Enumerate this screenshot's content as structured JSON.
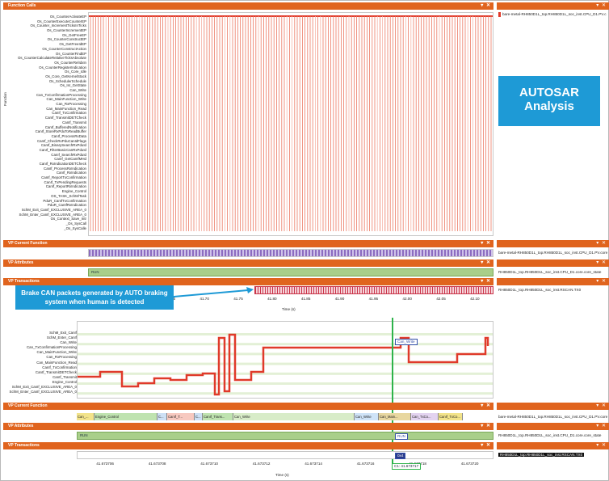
{
  "upper": {
    "function_calls_title": "Function Calls",
    "y_axis_label": "Function",
    "functions": [
      "Os_CounterActivateEP",
      "Os_CounterExecuteCounterEP",
      "Os_Counter_IncrementTicksInTicks",
      "Os_CounterIncrementEP",
      "Os_GetFreeEP",
      "Os_CounterConstructEP",
      "Os_GetFreeIdEP",
      "Os_CounterConstructAction",
      "Os_CounterFindEP",
      "Os_CounterCalculateRelativeTicksAbsolute",
      "Os_CounterRelIdxIn",
      "Os_CounterRegisterIndication",
      "Os_Core_Idle",
      "Os_Core_GetKernelStack",
      "Os_SchedulerSchedule",
      "Os_Isr_GetState",
      "Can_Write",
      "Can_TxConfirmationProcessing",
      "Can_MainFunction_Write",
      "Can_RxProcessing",
      "Can_MainFunction_Read",
      "CanIf_TxConfirmation",
      "CanIf_TransmitDETCheck",
      "CanIf_Transmit",
      "CanIf_BufferedNotification",
      "CanIf_StoreRxPduToReadBuffer",
      "CanIf_ProcessRxData",
      "CanIf_CheckRxPduCanIdFlags",
      "CanIf_BinarySearchRxPduId",
      "CanIf_FilterBasicCanRxPduId",
      "CanIf_SearchRxPduId",
      "CanIf_GetCanIfMHd",
      "CanIf_RxIndicationDETCheck",
      "CanIf_ProcessRxIndication",
      "CanIf_RxIndication",
      "CanIf_ReportTxConfirmation",
      "CanIf_TxPendingRequests",
      "CanIf_ReportRxIndication",
      "Engine_Control",
      "OS_TASK_SchM/Task",
      "PduR_CanIfTxConfirmation",
      "PduR_CanIfRxIndication",
      "SchM_Exit_CanIf_EXCLUSIVE_AREA_0",
      "SchM_Enter_CanIf_EXCLUSIVE_AREA_0",
      "Os_Context_Save_Intr",
      "_Os_SysCall",
      "_Os_SysCalle"
    ],
    "right_label": "bare-metal-RH850D1L_top.RH850D1L_soc_inst.CPU_D1.PV.c",
    "vp_current_function": "VP Current Function",
    "vp_current_right": "bare-metal-RH850D1L_top.RH850D1L_soc_inst.CPU_D1.PV.core",
    "vp_attributes": "VP Attributes",
    "run_label": "RUN",
    "vp_attributes_right": "RH850D1L_top.RH850D1L_soc_inst.CPU_D1.core.core_state",
    "vp_transactions": "VP Transactions",
    "vp_transactions_right": "RH850D1L_top.RH850D1L_soc_inst.RSCAN.TX0",
    "time_ticks": [
      "41.55",
      "41.60",
      "41.65",
      "41.70",
      "41.75",
      "41.80",
      "41.85",
      "41.90",
      "41.95",
      "42.00",
      "42.05",
      "42.10"
    ],
    "time_axis_label": "Time (s)"
  },
  "callout": {
    "text": "Brake CAN packets generated by AUTO braking system when human is detected"
  },
  "badge": {
    "line1": "AUTOSAR",
    "line2": "Analysis"
  },
  "lower": {
    "functions": [
      "SchM_Exit_CanIf",
      "SchM_Enter_CanIf",
      "Can_Write",
      "Can_TxConfirmationProcessing",
      "Can_MainFunction_Write",
      "Can_RxProcessing",
      "Can_MainFunction_Read",
      "CanIf_TxConfirmation",
      "CanIf_TransmitDETCheck",
      "CanIf_Transmit",
      "Engine_Control",
      "SchM_Exit_CanIf_EXCLUSIVE_AREA_0",
      "SchM_Enter_CanIf_EXCLUSIVE_AREA_0"
    ],
    "cursor_tag": "Can_Write",
    "vp_current_function": "VP Current Function",
    "vp_current_right": "bare-metal-RH850D1L_top.RH850D1L_soc_inst.CPU_D1.PV.core",
    "segments": [
      "Can_...",
      "Engine_Control",
      "C...",
      "CanIf_T...",
      "C...",
      "CanIf_Trans...",
      "Can_Write",
      "Can_Write",
      "Can_Main...",
      "Can_TxCo...",
      "CanIf_TxCo..."
    ],
    "vp_attributes": "VP Attributes",
    "run_label": "RUN",
    "run_cursor": "RUN",
    "vp_attributes_right": "RH850D1L_top.RH850D1L_soc_inst.CPU_D1.core.core_state",
    "vp_transactions": "VP Transactions",
    "tx_tag": "0x4",
    "vp_transactions_right": "RH850D1L_top.RH850D1L_soc_inst.RSCAN.TX0",
    "time_ticks": [
      "41.673706",
      "41.673708",
      "41.673710",
      "41.673712",
      "41.673714",
      "41.673716",
      "41.673718",
      "41.673720"
    ],
    "cursor_time": "C1: 41.673717",
    "time_axis_label": "Time (s)"
  },
  "colors": {
    "title_bar": "#e0641e",
    "accent_blue": "#1e9ad6",
    "call_red": "#e03a2a",
    "run_green": "#a9cf8a",
    "cursor_green": "#2db34a"
  }
}
